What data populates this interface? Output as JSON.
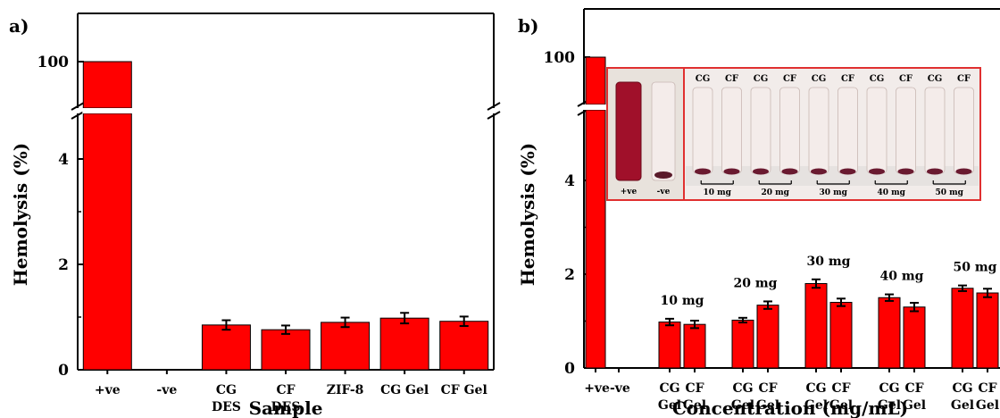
{
  "colors": {
    "bar": "#ff0000",
    "bar_edge": "#000000",
    "axis": "#000000",
    "group_label": "#9933cc",
    "photo_border": "#e03030",
    "photo_cg": "#2060c0",
    "photo_cf": "#208040",
    "photo_dose": "#e02020"
  },
  "chart_data": [
    {
      "panel_label": "a)",
      "type": "bar",
      "title": "",
      "xlabel": "Sample",
      "ylabel": "Hemolysis (%)",
      "axis_break": true,
      "y_ticks_lower": [
        "0",
        "2",
        "4"
      ],
      "y_ticks_upper": [
        "100"
      ],
      "categories": [
        [
          "+ve"
        ],
        [
          "-ve"
        ],
        [
          "CG",
          "DES"
        ],
        [
          "CF",
          "DES"
        ],
        [
          "ZIF-8"
        ],
        [
          "CG Gel"
        ],
        [
          "CF Gel"
        ]
      ],
      "values": [
        100,
        0,
        0.85,
        0.76,
        0.9,
        0.98,
        0.92
      ],
      "errors": [
        0,
        0,
        0.09,
        0.08,
        0.09,
        0.1,
        0.09
      ]
    },
    {
      "panel_label": "b)",
      "type": "bar",
      "title": "",
      "xlabel": "Concentration (mg/mL)",
      "ylabel": "Hemolysis (%)",
      "axis_break": true,
      "y_ticks_lower": [
        "0",
        "2",
        "4"
      ],
      "y_ticks_upper": [
        "100"
      ],
      "controls": [
        {
          "label": "+ve",
          "value": 100
        },
        {
          "label": "-ve",
          "value": 0
        }
      ],
      "groups": [
        {
          "label": "10 mg",
          "bars": [
            {
              "top": "CG",
              "bottom": "Gel",
              "value": 0.98,
              "error": 0.07
            },
            {
              "top": "CF",
              "bottom": "Gel",
              "value": 0.93,
              "error": 0.08
            }
          ]
        },
        {
          "label": "20 mg",
          "bars": [
            {
              "top": "CG",
              "bottom": "Gel",
              "value": 1.02,
              "error": 0.05
            },
            {
              "top": "CF",
              "bottom": "Gel",
              "value": 1.34,
              "error": 0.08
            }
          ]
        },
        {
          "label": "30 mg",
          "bars": [
            {
              "top": "CG",
              "bottom": "Gel",
              "value": 1.8,
              "error": 0.09
            },
            {
              "top": "CF",
              "bottom": "Gel",
              "value": 1.4,
              "error": 0.08
            }
          ]
        },
        {
          "label": "40 mg",
          "bars": [
            {
              "top": "CG",
              "bottom": "Gel",
              "value": 1.5,
              "error": 0.07
            },
            {
              "top": "CF",
              "bottom": "Gel",
              "value": 1.3,
              "error": 0.09
            }
          ]
        },
        {
          "label": "50 mg",
          "bars": [
            {
              "top": "CG",
              "bottom": "Gel",
              "value": 1.7,
              "error": 0.06
            },
            {
              "top": "CF",
              "bottom": "Gel",
              "value": 1.6,
              "error": 0.09
            }
          ]
        }
      ],
      "inset_photo": {
        "control_labels": [
          "+ve",
          "-ve"
        ],
        "tube_labels": [
          "CG",
          "CF",
          "CG",
          "CF",
          "CG",
          "CF",
          "CG",
          "CF",
          "CG",
          "CF"
        ],
        "dose_labels": [
          "10 mg",
          "20 mg",
          "30 mg",
          "40 mg",
          "50 mg"
        ]
      }
    }
  ]
}
